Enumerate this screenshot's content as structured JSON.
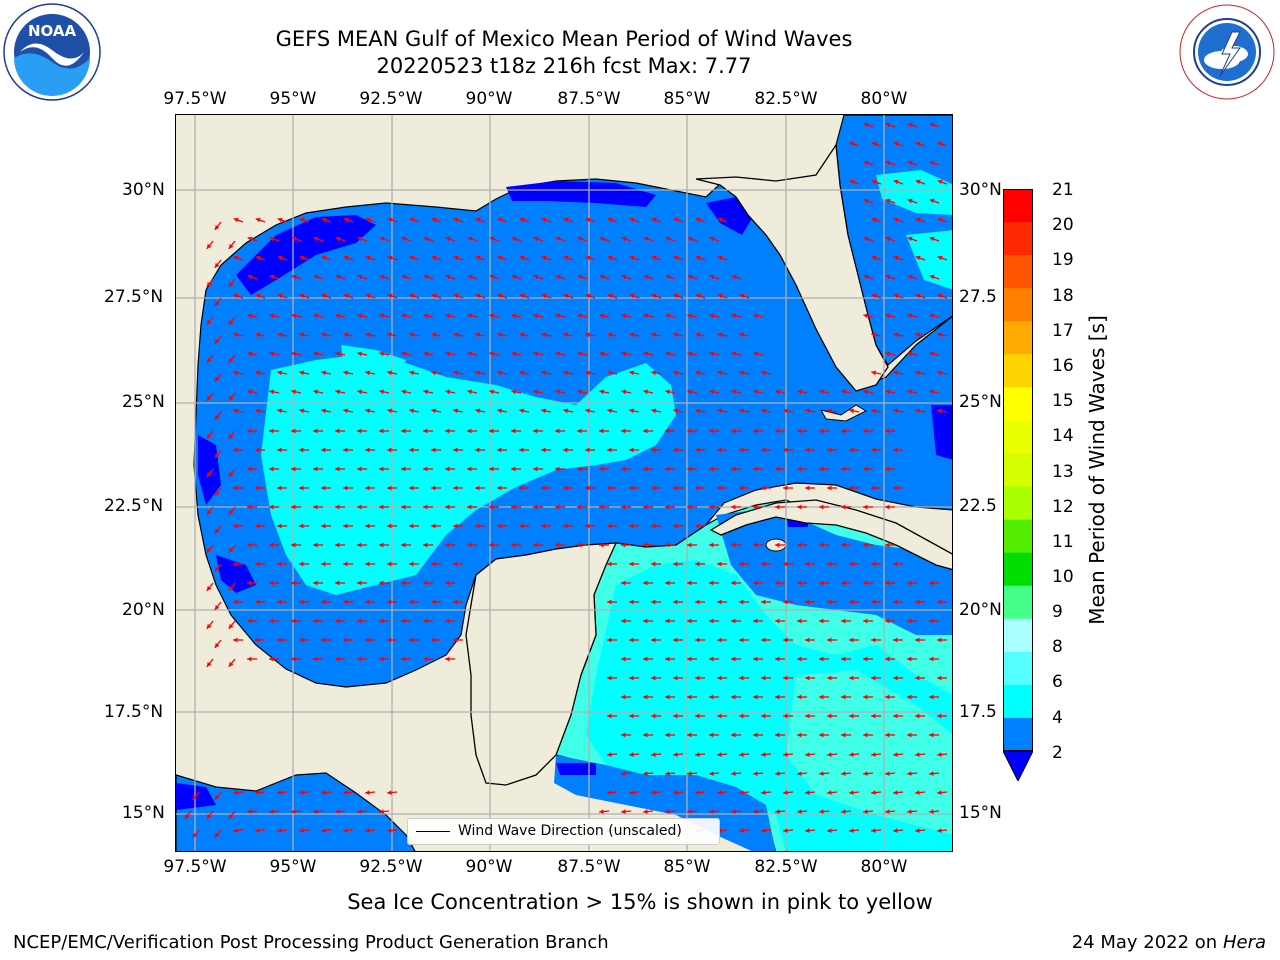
{
  "header": {
    "title_line1": "GEFS MEAN Gulf of Mexico Mean Period of Wind Waves",
    "title_line2": "20220523 t18z 216h fcst   Max: 7.77"
  },
  "logos": {
    "left": "NOAA",
    "left_ring_text": "NATIONAL OCEANIC AND ATMOSPHERIC ADMINISTRATION · U.S. DEPARTMENT OF COMMERCE",
    "right_ring_text": "NATIONAL WEATHER SERVICE"
  },
  "map": {
    "lon_labels": [
      "97.5°W",
      "95°W",
      "92.5°W",
      "90°W",
      "87.5°W",
      "85°W",
      "82.5°W",
      "80°W"
    ],
    "lat_labels_left": [
      "30°N",
      "27.5°N",
      "25°N",
      "22.5°N",
      "20°N",
      "17.5°N",
      "15°N"
    ],
    "lat_labels_right": [
      "30°N",
      "27.5",
      "25°N",
      "22.5",
      "20°N",
      "17.5",
      "15°N"
    ],
    "colors": {
      "land": "#efecdc",
      "ocean_base": "#0080ff",
      "calm": "#0000ff",
      "mid": "#00ffff",
      "high": "#40ffe8",
      "arrow": "#ff0000",
      "grid": "#b0b0b0"
    }
  },
  "colorbar": {
    "label": "Mean Period of Wind Waves [s]",
    "ticks": [
      "21",
      "20",
      "19",
      "18",
      "17",
      "16",
      "15",
      "14",
      "13",
      "12",
      "11",
      "10",
      "9",
      "8",
      "6",
      "4",
      "2"
    ],
    "colors": [
      "#ff0000",
      "#ff2a00",
      "#ff5500",
      "#ff8000",
      "#ffaa00",
      "#ffd500",
      "#ffff00",
      "#eaff00",
      "#d5ff00",
      "#aaff00",
      "#55ee00",
      "#00dd00",
      "#44ff88",
      "#aaffff",
      "#55ffff",
      "#00ffff",
      "#0080ff"
    ],
    "extend_color": "#0000ff"
  },
  "legend": {
    "label": "Wind Wave Direction (unscaled)"
  },
  "notes": {
    "ice": "Sea Ice Concentration > 15% is shown in pink to yellow"
  },
  "footer": {
    "left": "NCEP/EMC/Verification Post Processing Product Generation Branch",
    "right_date": "24 May 2022 on",
    "right_host": "Hera"
  }
}
